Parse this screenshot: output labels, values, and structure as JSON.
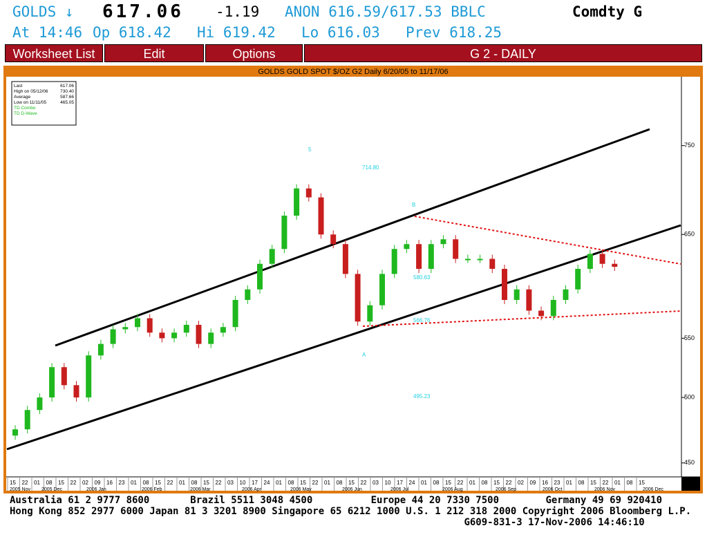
{
  "header": {
    "ticker": "GOLDS ↓",
    "last": "617.06",
    "change": "-1.19",
    "quote": "ANON 616.59/617.53 BBLC",
    "sector": "Comdty G",
    "time": "At 14:46",
    "open": "Op 618.42",
    "high": "Hi 619.42",
    "low": "Lo 616.03",
    "prev": "Prev 618.25"
  },
  "menu": {
    "items": [
      "Worksheet List",
      "Edit",
      "Options"
    ],
    "screen": "G 2 - DAILY"
  },
  "chart_data": {
    "type": "candlestick",
    "title": "GOLDS GOLD SPOT $/OZ G2 Daily 6/20/05 to 11/17/06",
    "legend": [
      [
        "Last",
        "617.06"
      ],
      [
        "High on  05/12/06",
        "730.40"
      ],
      [
        "Average",
        "587.66"
      ],
      [
        "Low on  11/11/05",
        "465.05"
      ],
      [
        "TD Combo",
        ""
      ],
      [
        "TD D-Wave",
        ""
      ]
    ],
    "values": [
      475,
      490,
      500,
      525,
      510,
      500,
      535,
      545,
      558,
      560,
      568,
      555,
      550,
      555,
      562,
      545,
      555,
      560,
      585,
      595,
      620,
      635,
      670,
      700,
      690,
      650,
      640,
      610,
      565,
      580,
      610,
      635,
      640,
      615,
      640,
      645,
      625,
      625,
      625,
      615,
      585,
      595,
      575,
      570,
      585,
      595,
      615,
      630,
      620,
      617.06
    ],
    "up_color": "#1fb81f",
    "down_color": "#c81e1e",
    "log_scale": true,
    "ylim": [
      440,
      837
    ],
    "yticks": [
      450,
      500,
      550,
      650,
      750
    ],
    "day_ticks": [
      "15",
      "22",
      "01",
      "08",
      "15",
      "22",
      "02",
      "09",
      "16",
      "23",
      "01",
      "08",
      "15",
      "22",
      "01",
      "08",
      "15",
      "22",
      "03",
      "10",
      "17",
      "24",
      "01",
      "08",
      "15",
      "22",
      "01",
      "08",
      "15",
      "22",
      "03",
      "10",
      "17",
      "24",
      "01",
      "08",
      "15",
      "22",
      "01",
      "08",
      "15",
      "22",
      "02",
      "09",
      "16",
      "23",
      "01",
      "08",
      "15",
      "22",
      "01",
      "08",
      "15"
    ],
    "month_ticks": [
      "2005 Nov",
      "2005 Dec",
      "2006 Jan",
      "2006 Feb",
      "2006 Mar",
      "2006 Apr",
      "2006 May",
      "2006 Jun",
      "2006 Jul",
      "2006 Aug",
      "2006 Sep",
      "2006 Oct",
      "2006 Nov",
      "2006 Dec"
    ],
    "annotations": [
      "714.80",
      "580.63",
      "566.76",
      "495.23",
      "5",
      "B",
      "A"
    ]
  },
  "footer": [
    "Australia 61 2 9777 8600       Brazil 5511 3048 4500          Europe 44 20 7330 7500        Germany 49 69 920410",
    "Hong Kong 852 2977 6000 Japan 81 3 3201 8900 Singapore 65 6212 1000 U.S. 1 212 318 2000 Copyright 2006 Bloomberg L.P.",
    "                                                                              G609-831-3 17-Nov-2006 14:46:10"
  ]
}
